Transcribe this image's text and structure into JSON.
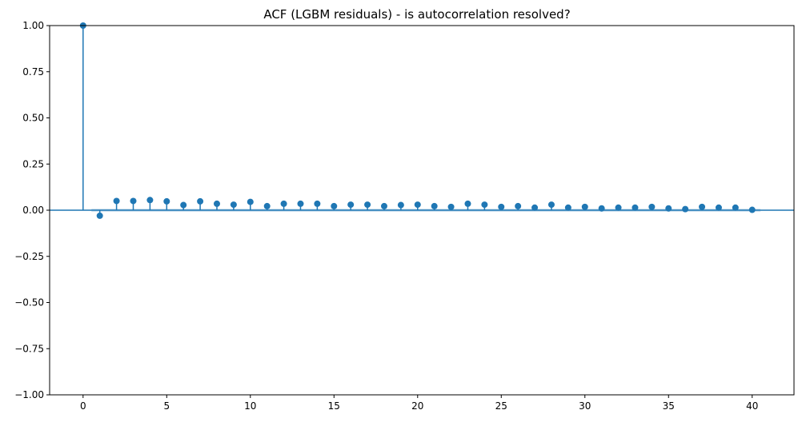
{
  "chart_data": {
    "type": "stem",
    "title": "ACF (LGBM residuals) - is autocorrelation resolved?",
    "xlabel": "",
    "ylabel": "",
    "xlim": [
      -2,
      42.5
    ],
    "ylim": [
      -1.0,
      1.0
    ],
    "x_ticks": [
      0,
      5,
      10,
      15,
      20,
      25,
      30,
      35,
      40
    ],
    "y_ticks": [
      -1.0,
      -0.75,
      -0.5,
      -0.25,
      0.0,
      0.25,
      0.5,
      0.75,
      1.0
    ],
    "x_tick_labels": [
      "0",
      "5",
      "10",
      "15",
      "20",
      "25",
      "30",
      "35",
      "40"
    ],
    "y_tick_labels": [
      "−1.00",
      "−0.75",
      "−0.50",
      "−0.25",
      "0.00",
      "0.25",
      "0.50",
      "0.75",
      "1.00"
    ],
    "lags": [
      0,
      1,
      2,
      3,
      4,
      5,
      6,
      7,
      8,
      9,
      10,
      11,
      12,
      13,
      14,
      15,
      16,
      17,
      18,
      19,
      20,
      21,
      22,
      23,
      24,
      25,
      26,
      27,
      28,
      29,
      30,
      31,
      32,
      33,
      34,
      35,
      36,
      37,
      38,
      39,
      40
    ],
    "acf": [
      1.0,
      -0.03,
      0.05,
      0.05,
      0.055,
      0.048,
      0.028,
      0.048,
      0.035,
      0.03,
      0.045,
      0.022,
      0.035,
      0.035,
      0.035,
      0.022,
      0.03,
      0.03,
      0.022,
      0.028,
      0.03,
      0.022,
      0.018,
      0.035,
      0.03,
      0.018,
      0.022,
      0.014,
      0.03,
      0.014,
      0.018,
      0.01,
      0.014,
      0.014,
      0.018,
      0.01,
      0.006,
      0.018,
      0.014,
      0.014,
      0.002
    ],
    "conf_band": 0.008,
    "colors": {
      "stem": "#1f77b4",
      "marker": "#1f77b4",
      "band": "#1f77b4",
      "axis": "#000000"
    }
  }
}
